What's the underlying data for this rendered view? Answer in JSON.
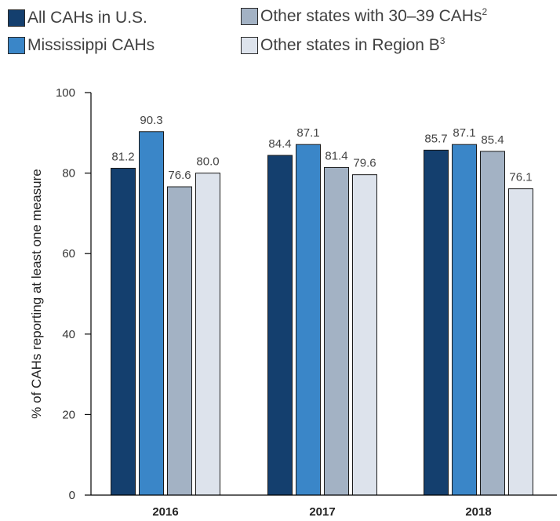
{
  "chart_data": {
    "type": "bar",
    "categories": [
      "2016",
      "2017",
      "2018"
    ],
    "series": [
      {
        "name": "All CAHs in U.S.",
        "sup": "",
        "color": "#143f6e",
        "values": [
          81.2,
          84.4,
          85.7
        ],
        "labels": [
          "81.2",
          "84.4",
          "85.7"
        ]
      },
      {
        "name": "Mississippi CAHs",
        "sup": "",
        "color": "#3a86c8",
        "values": [
          90.3,
          87.1,
          87.1
        ],
        "labels": [
          "90.3",
          "87.1",
          "87.1"
        ]
      },
      {
        "name": "Other states with 30–39 CAHs",
        "sup": "2",
        "color": "#a3b2c4",
        "values": [
          76.6,
          81.4,
          85.4
        ],
        "labels": [
          "76.6",
          "81.4",
          "85.4"
        ]
      },
      {
        "name": "Other states in Region B",
        "sup": "3",
        "color": "#dde3ec",
        "values": [
          80.0,
          79.6,
          76.1
        ],
        "labels": [
          "80.0",
          "79.6",
          "76.1"
        ]
      }
    ],
    "ylabel": "% of CAHs reporting at least one measure",
    "xlabel": "",
    "ylim": [
      0,
      100
    ],
    "yticks": [
      "0",
      "20",
      "40",
      "60",
      "80",
      "100"
    ],
    "legend_position": "top",
    "grid": false
  }
}
